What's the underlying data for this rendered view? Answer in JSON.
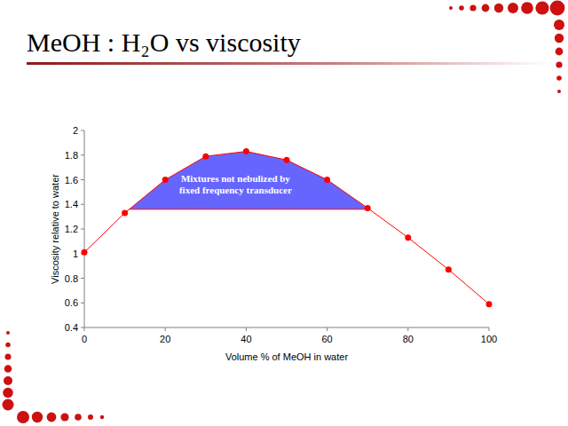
{
  "chart_data": {
    "type": "line",
    "title": "MeOH : H₂O vs viscosity",
    "x_label": "Volume % of MeOH in water",
    "y_label": "Viscosity relative to water",
    "x": [
      0,
      10,
      20,
      30,
      40,
      50,
      60,
      70,
      80,
      90,
      100
    ],
    "values": [
      1.01,
      1.33,
      1.6,
      1.79,
      1.83,
      1.76,
      1.6,
      1.37,
      1.13,
      0.87,
      0.59
    ],
    "color": "#ff0000",
    "marker": "circle",
    "line_style": "solid",
    "xlim": [
      0,
      100
    ],
    "xticks": [
      0,
      20,
      40,
      60,
      80,
      100
    ],
    "ylim": [
      0.4,
      2
    ],
    "yticks": [
      0.4,
      0.6,
      0.8,
      1,
      1.2,
      1.4,
      1.6,
      1.8,
      2
    ],
    "grid": false,
    "annotations": [
      {
        "text_lines": [
          "Mixtures not nebulized by",
          "fixed frequency transducer"
        ],
        "threshold": 1.36,
        "color": "#6666ff"
      }
    ]
  }
}
